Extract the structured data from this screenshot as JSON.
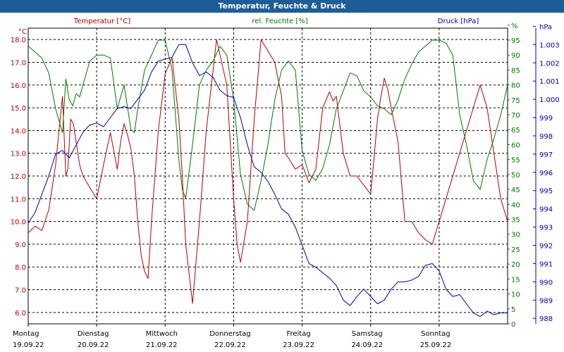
{
  "colors": {
    "titlebar": "#1f5d96",
    "temperature": "#b40000",
    "humidity": "#007800",
    "pressure": "#0000aa",
    "grid": "#000000"
  },
  "chart_data": {
    "type": "line",
    "title": "Temperatur, Feuchte & Druck",
    "grid": true,
    "days": [
      {
        "weekday": "Montag",
        "date": "19.09.22"
      },
      {
        "weekday": "Dienstag",
        "date": "20.09.22"
      },
      {
        "weekday": "Mittwoch",
        "date": "21.09.22"
      },
      {
        "weekday": "Donnerstag",
        "date": "22.09.22"
      },
      {
        "weekday": "Freitag",
        "date": "23.09.22"
      },
      {
        "weekday": "Samstag",
        "date": "24.09.22"
      },
      {
        "weekday": "Sonntag",
        "date": "25.09.22"
      }
    ],
    "x_range_days": [
      0,
      7
    ],
    "axes": {
      "left": {
        "unit": "°C",
        "range": [
          5.5,
          18.5
        ],
        "ticks": [
          "6.0",
          "7.0",
          "8.0",
          "9.0",
          "10.0",
          "11.0",
          "12.0",
          "13.0",
          "14.0",
          "15.0",
          "16.0",
          "17.0",
          "18.0"
        ]
      },
      "humidity": {
        "unit": "%",
        "range": [
          0,
          99
        ],
        "ticks": [
          "0",
          "5",
          "10",
          "15",
          "20",
          "25",
          "30",
          "35",
          "40",
          "45",
          "50",
          "55",
          "60",
          "65",
          "70",
          "75",
          "80",
          "85",
          "90",
          "95",
          "%"
        ]
      },
      "pressure": {
        "unit": "hPa",
        "range": [
          987.7,
          1003.9
        ],
        "ticks": [
          "988",
          "989",
          "990",
          "991",
          "992",
          "993",
          "994",
          "995",
          "996",
          "997",
          "998",
          "999",
          "1.000",
          "1.001",
          "1.002",
          "1.003",
          "hPa"
        ]
      }
    },
    "series": [
      {
        "name": "Temperatur [°C]",
        "color": "#b40000",
        "axis": "left",
        "x": [
          0,
          0.1,
          0.2,
          0.3,
          0.4,
          0.5,
          0.55,
          0.58,
          0.62,
          0.66,
          0.7,
          0.75,
          0.8,
          0.9,
          1.0,
          1.1,
          1.2,
          1.3,
          1.35,
          1.4,
          1.45,
          1.5,
          1.55,
          1.6,
          1.65,
          1.7,
          1.75,
          1.8,
          1.9,
          2.0,
          2.1,
          2.2,
          2.25,
          2.3,
          2.4,
          2.5,
          2.6,
          2.75,
          2.9,
          3.0,
          3.05,
          3.1,
          3.2,
          3.3,
          3.4,
          3.5,
          3.6,
          3.7,
          3.75,
          3.8,
          3.9,
          4.0,
          4.1,
          4.2,
          4.3,
          4.4,
          4.45,
          4.5,
          4.6,
          4.7,
          4.8,
          4.9,
          5.0,
          5.05,
          5.1,
          5.15,
          5.2,
          5.25,
          5.3,
          5.4,
          5.5,
          5.6,
          5.7,
          5.8,
          5.9,
          6.0,
          6.1,
          6.2,
          6.3,
          6.4,
          6.5,
          6.6,
          6.7,
          6.75,
          6.85,
          6.9,
          6.95,
          7.0
        ],
        "values": [
          9.5,
          9.8,
          9.6,
          10.5,
          12.5,
          15.5,
          12.0,
          12.3,
          14.5,
          14.3,
          13.5,
          12.5,
          12.0,
          11.5,
          11.0,
          12.5,
          13.9,
          12.3,
          13.5,
          14.3,
          13.8,
          13.2,
          12.0,
          10.0,
          8.5,
          7.8,
          7.5,
          10.0,
          14.0,
          16.5,
          17.2,
          14.5,
          12.0,
          9.0,
          6.4,
          10.0,
          14.0,
          18.0,
          16.0,
          11.0,
          9.0,
          8.2,
          10.0,
          14.5,
          18.0,
          17.5,
          17.0,
          15.5,
          13.0,
          12.8,
          12.3,
          12.5,
          11.7,
          12.3,
          15.0,
          15.7,
          15.3,
          15.5,
          13.0,
          12.0,
          12.0,
          11.6,
          11.2,
          12.8,
          14.5,
          15.5,
          16.3,
          15.8,
          15.0,
          13.5,
          10.0,
          10.0,
          9.5,
          9.2,
          9.0,
          10.0,
          11.0,
          12.0,
          13.0,
          14.0,
          15.0,
          16.0,
          15.0,
          14.0,
          12.0,
          11.0,
          10.5,
          10.0
        ]
      },
      {
        "name": "rel. Feuchte [%]",
        "color": "#007800",
        "axis": "humidity",
        "x": [
          0,
          0.1,
          0.2,
          0.3,
          0.4,
          0.5,
          0.55,
          0.6,
          0.65,
          0.7,
          0.75,
          0.8,
          0.9,
          1.0,
          1.1,
          1.2,
          1.3,
          1.4,
          1.5,
          1.55,
          1.6,
          1.7,
          1.8,
          1.9,
          2.0,
          2.1,
          2.2,
          2.25,
          2.3,
          2.4,
          2.5,
          2.6,
          2.7,
          2.8,
          2.9,
          3.0,
          3.1,
          3.2,
          3.3,
          3.4,
          3.5,
          3.6,
          3.7,
          3.8,
          3.9,
          4.0,
          4.1,
          4.2,
          4.3,
          4.4,
          4.5,
          4.6,
          4.7,
          4.8,
          4.9,
          5.0,
          5.1,
          5.2,
          5.3,
          5.4,
          5.5,
          5.6,
          5.7,
          5.8,
          5.9,
          6.0,
          6.1,
          6.2,
          6.3,
          6.4,
          6.5,
          6.6,
          6.7,
          6.8,
          6.9,
          7.0
        ],
        "values": [
          93,
          91,
          89,
          84,
          72,
          64,
          82,
          75,
          73,
          77,
          76,
          80,
          88,
          90,
          90,
          89,
          72,
          80,
          65,
          64,
          72,
          85,
          90,
          95,
          95,
          85,
          55,
          45,
          42,
          60,
          80,
          85,
          88,
          93,
          90,
          75,
          50,
          40,
          38,
          48,
          60,
          75,
          85,
          88,
          85,
          58,
          50,
          48,
          52,
          60,
          72,
          78,
          84,
          83,
          78,
          76,
          73,
          72,
          70,
          75,
          82,
          87,
          91,
          93,
          95,
          95,
          94,
          90,
          70,
          60,
          48,
          45,
          55,
          62,
          70,
          80
        ]
      },
      {
        "name": "Druck [hPa]",
        "color": "#0000aa",
        "axis": "pressure",
        "x": [
          0,
          0.1,
          0.2,
          0.3,
          0.4,
          0.5,
          0.6,
          0.7,
          0.8,
          0.9,
          1.0,
          1.1,
          1.2,
          1.3,
          1.4,
          1.5,
          1.6,
          1.7,
          1.8,
          1.9,
          2.0,
          2.1,
          2.2,
          2.3,
          2.4,
          2.5,
          2.6,
          2.7,
          2.8,
          2.9,
          3.0,
          3.1,
          3.2,
          3.3,
          3.4,
          3.5,
          3.6,
          3.7,
          3.8,
          3.9,
          4.0,
          4.1,
          4.2,
          4.3,
          4.4,
          4.5,
          4.6,
          4.7,
          4.8,
          4.9,
          5.0,
          5.1,
          5.2,
          5.3,
          5.4,
          5.5,
          5.6,
          5.7,
          5.8,
          5.9,
          6.0,
          6.1,
          6.2,
          6.3,
          6.4,
          6.5,
          6.6,
          6.7,
          6.8,
          6.9,
          7.0
        ],
        "values": [
          993.2,
          993.8,
          994.8,
          995.8,
          997.0,
          997.2,
          996.8,
          997.5,
          998.2,
          998.6,
          998.7,
          998.5,
          999.0,
          999.5,
          999.6,
          999.5,
          1000.0,
          1000.5,
          1001.5,
          1002.1,
          1002.2,
          1002.3,
          1003.0,
          1003.0,
          1002.0,
          1001.3,
          1001.5,
          1001.2,
          1000.5,
          1000.2,
          1000.1,
          999.0,
          997.5,
          996.3,
          996.0,
          995.5,
          994.8,
          994.0,
          993.7,
          993.0,
          992.0,
          991.0,
          990.8,
          990.5,
          990.2,
          989.8,
          989.0,
          988.7,
          989.2,
          989.6,
          989.2,
          988.8,
          989.0,
          989.6,
          990.0,
          990.0,
          990.1,
          990.3,
          990.9,
          991.0,
          990.6,
          989.6,
          989.2,
          989.3,
          988.8,
          988.3,
          988.1,
          988.4,
          988.2,
          988.3,
          988.3
        ]
      }
    ]
  }
}
